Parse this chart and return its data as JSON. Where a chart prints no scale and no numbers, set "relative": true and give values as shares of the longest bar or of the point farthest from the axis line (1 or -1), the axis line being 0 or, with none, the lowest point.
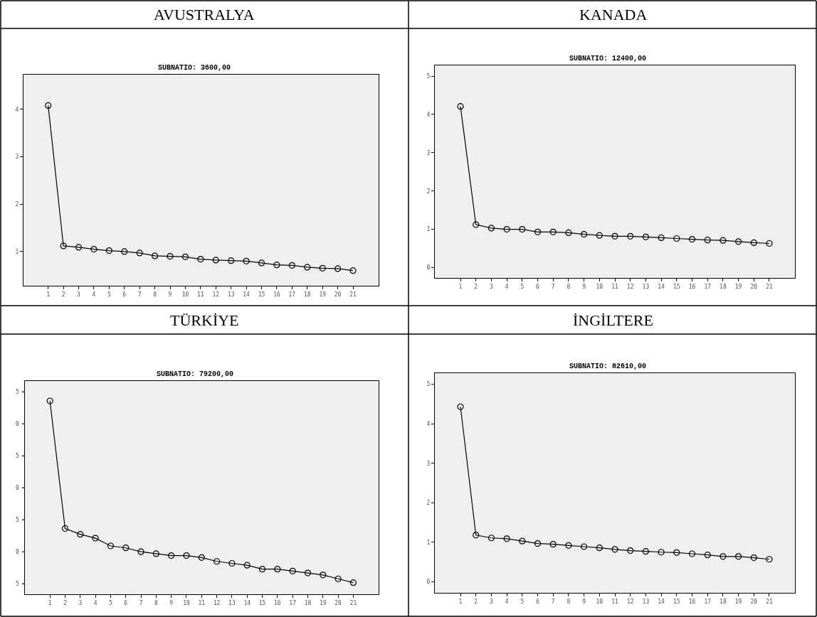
{
  "chart_data": [
    {
      "type": "line",
      "title": "AVUSTRALYA",
      "subtitle": "SUBNATIO: 3600,00",
      "x": [
        1,
        2,
        3,
        4,
        5,
        6,
        7,
        8,
        9,
        10,
        11,
        12,
        13,
        14,
        15,
        16,
        17,
        18,
        19,
        20,
        21
      ],
      "xlim": [
        -0.62,
        22.68
      ],
      "xticks": [
        1,
        2,
        3,
        4,
        5,
        6,
        7,
        8,
        9,
        10,
        11,
        12,
        13,
        14,
        15,
        16,
        17,
        18,
        19,
        20,
        21
      ],
      "ylim": [
        0.28,
        4.73
      ],
      "yticks": [
        1,
        2,
        3,
        4
      ],
      "grid": false,
      "marker": "circle",
      "line_style": "solid",
      "series": [
        {
          "color": "#000000",
          "values": [
            4.08,
            1.12,
            1.09,
            1.05,
            1.02,
            1.0,
            0.97,
            0.91,
            0.9,
            0.89,
            0.84,
            0.82,
            0.81,
            0.8,
            0.76,
            0.72,
            0.71,
            0.67,
            0.65,
            0.64,
            0.6
          ]
        }
      ]
    },
    {
      "type": "line",
      "title": "KANADA",
      "subtitle": "SUBNATIO: 12400,00",
      "x": [
        1,
        2,
        3,
        4,
        5,
        6,
        7,
        8,
        9,
        10,
        11,
        12,
        13,
        14,
        15,
        16,
        17,
        18,
        19,
        20,
        21
      ],
      "xlim": [
        -0.66,
        22.66
      ],
      "xticks": [
        1,
        2,
        3,
        4,
        5,
        6,
        7,
        8,
        9,
        10,
        11,
        12,
        13,
        14,
        15,
        16,
        17,
        18,
        19,
        20,
        21
      ],
      "ylim": [
        -0.27,
        5.28
      ],
      "yticks": [
        0,
        1,
        2,
        3,
        4,
        5
      ],
      "grid": false,
      "marker": "circle",
      "line_style": "solid",
      "series": [
        {
          "color": "#000000",
          "values": [
            4.21,
            1.12,
            1.03,
            1.0,
            1.0,
            0.93,
            0.93,
            0.91,
            0.87,
            0.84,
            0.82,
            0.82,
            0.8,
            0.78,
            0.76,
            0.74,
            0.72,
            0.71,
            0.68,
            0.65,
            0.63
          ]
        }
      ]
    },
    {
      "type": "line",
      "title": "TÜRKİYE",
      "subtitle": "SUBNATIO: 79200,00",
      "x": [
        1,
        2,
        3,
        4,
        5,
        6,
        7,
        8,
        9,
        10,
        11,
        12,
        13,
        14,
        15,
        16,
        17,
        18,
        19,
        20,
        21
      ],
      "xlim": [
        -0.65,
        22.67
      ],
      "xticks": [
        1,
        2,
        3,
        4,
        5,
        6,
        7,
        8,
        9,
        10,
        11,
        12,
        13,
        14,
        15,
        16,
        17,
        18,
        19,
        20,
        21
      ],
      "relative": true,
      "annotations": [
        "5",
        "0",
        "5",
        "0",
        "5",
        "0",
        "5"
      ],
      "grid": false,
      "marker": "circle",
      "line_style": "solid",
      "series": [
        {
          "color": "#000000",
          "values": [
            1.0,
            0.34,
            0.31,
            0.29,
            0.25,
            0.24,
            0.22,
            0.21,
            0.2,
            0.2,
            0.19,
            0.17,
            0.16,
            0.15,
            0.13,
            0.13,
            0.12,
            0.11,
            0.1,
            0.08,
            0.06
          ]
        }
      ]
    },
    {
      "type": "line",
      "title": "İNGİLTERE",
      "subtitle": "SUBNATIO: 82610,00",
      "x": [
        1,
        2,
        3,
        4,
        5,
        6,
        7,
        8,
        9,
        10,
        11,
        12,
        13,
        14,
        15,
        16,
        17,
        18,
        19,
        20,
        21
      ],
      "xlim": [
        -0.66,
        22.66
      ],
      "xticks": [
        1,
        2,
        3,
        4,
        5,
        6,
        7,
        8,
        9,
        10,
        11,
        12,
        13,
        14,
        15,
        16,
        17,
        18,
        19,
        20,
        21
      ],
      "ylim": [
        -0.28,
        5.28
      ],
      "yticks": [
        0,
        1,
        2,
        3,
        4,
        5
      ],
      "grid": false,
      "marker": "circle",
      "line_style": "solid",
      "series": [
        {
          "color": "#000000",
          "values": [
            4.43,
            1.18,
            1.11,
            1.09,
            1.03,
            0.97,
            0.95,
            0.92,
            0.89,
            0.86,
            0.82,
            0.79,
            0.77,
            0.75,
            0.74,
            0.71,
            0.68,
            0.64,
            0.64,
            0.61,
            0.57
          ]
        }
      ]
    }
  ]
}
